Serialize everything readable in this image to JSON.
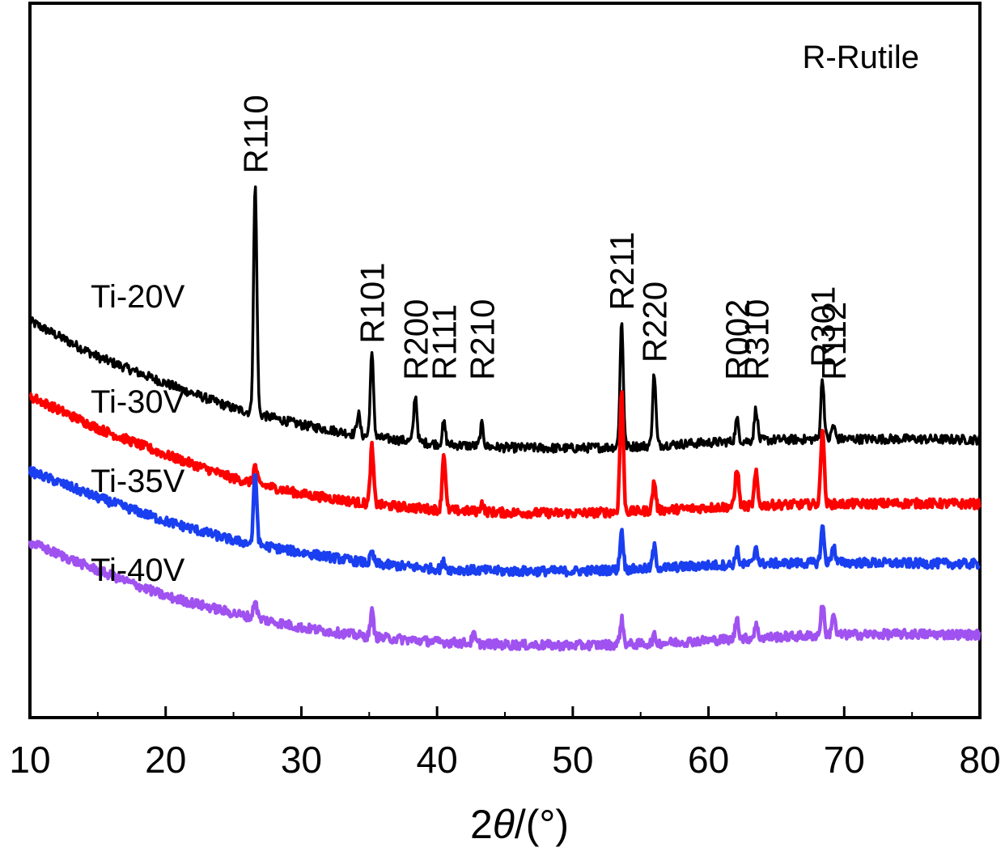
{
  "chart_data": {
    "type": "line",
    "xlabel_prefix": "2",
    "xlabel_symbol": "θ",
    "xlabel_suffix": "/(°)",
    "ylabel": "",
    "xlim": [
      10,
      80
    ],
    "ylim": [
      0,
      100
    ],
    "x_ticks": [
      10,
      20,
      30,
      40,
      50,
      60,
      70,
      80
    ],
    "y_ticks_shown": false,
    "grid": false,
    "note": "R-Rutile",
    "peaks": [
      {
        "label": "R110",
        "x": 26.6
      },
      {
        "label": "R101",
        "x": 35.2
      },
      {
        "label": "R200",
        "x": 38.4
      },
      {
        "label": "R111",
        "x": 40.5
      },
      {
        "label": "R210",
        "x": 43.3
      },
      {
        "label": "R211",
        "x": 53.6
      },
      {
        "label": "R220",
        "x": 56.0
      },
      {
        "label": "R002",
        "x": 62.1
      },
      {
        "label": "R310",
        "x": 63.5
      },
      {
        "label": "R301",
        "x": 68.4
      },
      {
        "label": "R112",
        "x": 69.2
      }
    ],
    "series": [
      {
        "name": "Ti-20V",
        "color": "#000000",
        "baseline": [
          [
            10,
            55.5
          ],
          [
            15,
            50.5
          ],
          [
            20,
            46.8
          ],
          [
            25,
            43.3
          ],
          [
            30,
            41.0
          ],
          [
            35,
            39.3
          ],
          [
            40,
            38.3
          ],
          [
            45,
            37.8
          ],
          [
            50,
            37.7
          ],
          [
            55,
            38.0
          ],
          [
            60,
            38.5
          ],
          [
            65,
            38.9
          ],
          [
            70,
            39.0
          ],
          [
            75,
            39.0
          ],
          [
            80,
            38.9
          ]
        ],
        "peaks": [
          [
            26.6,
            32
          ],
          [
            34.2,
            3
          ],
          [
            35.2,
            11.5
          ],
          [
            38.4,
            6.5
          ],
          [
            40.5,
            3
          ],
          [
            43.3,
            3
          ],
          [
            53.6,
            17.5
          ],
          [
            56.0,
            10
          ],
          [
            62.1,
            3
          ],
          [
            63.5,
            4.5
          ],
          [
            68.4,
            8.5
          ],
          [
            69.2,
            2
          ]
        ]
      },
      {
        "name": "Ti-30V",
        "color": "#ff0000",
        "baseline": [
          [
            10,
            45.0
          ],
          [
            15,
            40.5
          ],
          [
            20,
            36.8
          ],
          [
            25,
            33.5
          ],
          [
            30,
            31.3
          ],
          [
            35,
            29.9
          ],
          [
            40,
            29.1
          ],
          [
            45,
            28.7
          ],
          [
            50,
            28.6
          ],
          [
            55,
            28.9
          ],
          [
            60,
            29.4
          ],
          [
            65,
            29.8
          ],
          [
            70,
            29.9
          ],
          [
            75,
            30.0
          ],
          [
            80,
            29.9
          ]
        ],
        "peaks": [
          [
            26.6,
            2.5
          ],
          [
            35.2,
            8
          ],
          [
            40.5,
            8
          ],
          [
            43.3,
            1.2
          ],
          [
            53.6,
            17
          ],
          [
            56.0,
            4
          ],
          [
            62.1,
            5.5
          ],
          [
            63.5,
            4.5
          ],
          [
            68.4,
            11
          ]
        ]
      },
      {
        "name": "Ti-35V",
        "color": "#1a3ff0",
        "baseline": [
          [
            10,
            34.5
          ],
          [
            15,
            30.8
          ],
          [
            20,
            27.5
          ],
          [
            25,
            24.8
          ],
          [
            30,
            23.1
          ],
          [
            35,
            21.6
          ],
          [
            40,
            20.8
          ],
          [
            45,
            20.5
          ],
          [
            50,
            20.5
          ],
          [
            55,
            20.8
          ],
          [
            60,
            21.3
          ],
          [
            65,
            21.6
          ],
          [
            70,
            21.7
          ],
          [
            75,
            21.6
          ],
          [
            80,
            21.5
          ]
        ],
        "peaks": [
          [
            26.6,
            10
          ],
          [
            35.2,
            1.5
          ],
          [
            40.5,
            1
          ],
          [
            53.6,
            5.5
          ],
          [
            56.0,
            3
          ],
          [
            62.1,
            2
          ],
          [
            63.5,
            2.5
          ],
          [
            68.4,
            5
          ],
          [
            69.2,
            2.5
          ]
        ]
      },
      {
        "name": "Ti-40V",
        "color": "#a052f0",
        "baseline": [
          [
            10,
            24.5
          ],
          [
            15,
            20.6
          ],
          [
            20,
            17.0
          ],
          [
            25,
            14.6
          ],
          [
            30,
            12.6
          ],
          [
            35,
            11.3
          ],
          [
            40,
            10.6
          ],
          [
            45,
            10.2
          ],
          [
            50,
            10.1
          ],
          [
            55,
            10.3
          ],
          [
            60,
            10.8
          ],
          [
            65,
            11.3
          ],
          [
            70,
            11.6
          ],
          [
            75,
            11.7
          ],
          [
            80,
            11.6
          ]
        ],
        "peaks": [
          [
            26.6,
            2.5
          ],
          [
            35.2,
            3.5
          ],
          [
            42.7,
            1.2
          ],
          [
            53.6,
            3.5
          ],
          [
            56.0,
            1
          ],
          [
            62.1,
            3
          ],
          [
            63.5,
            1.8
          ],
          [
            68.4,
            4.5
          ],
          [
            69.2,
            3
          ]
        ]
      }
    ]
  },
  "labels": {
    "note": "R-Rutile",
    "series": [
      "Ti-20V",
      "Ti-30V",
      "Ti-35V",
      "Ti-40V"
    ]
  }
}
